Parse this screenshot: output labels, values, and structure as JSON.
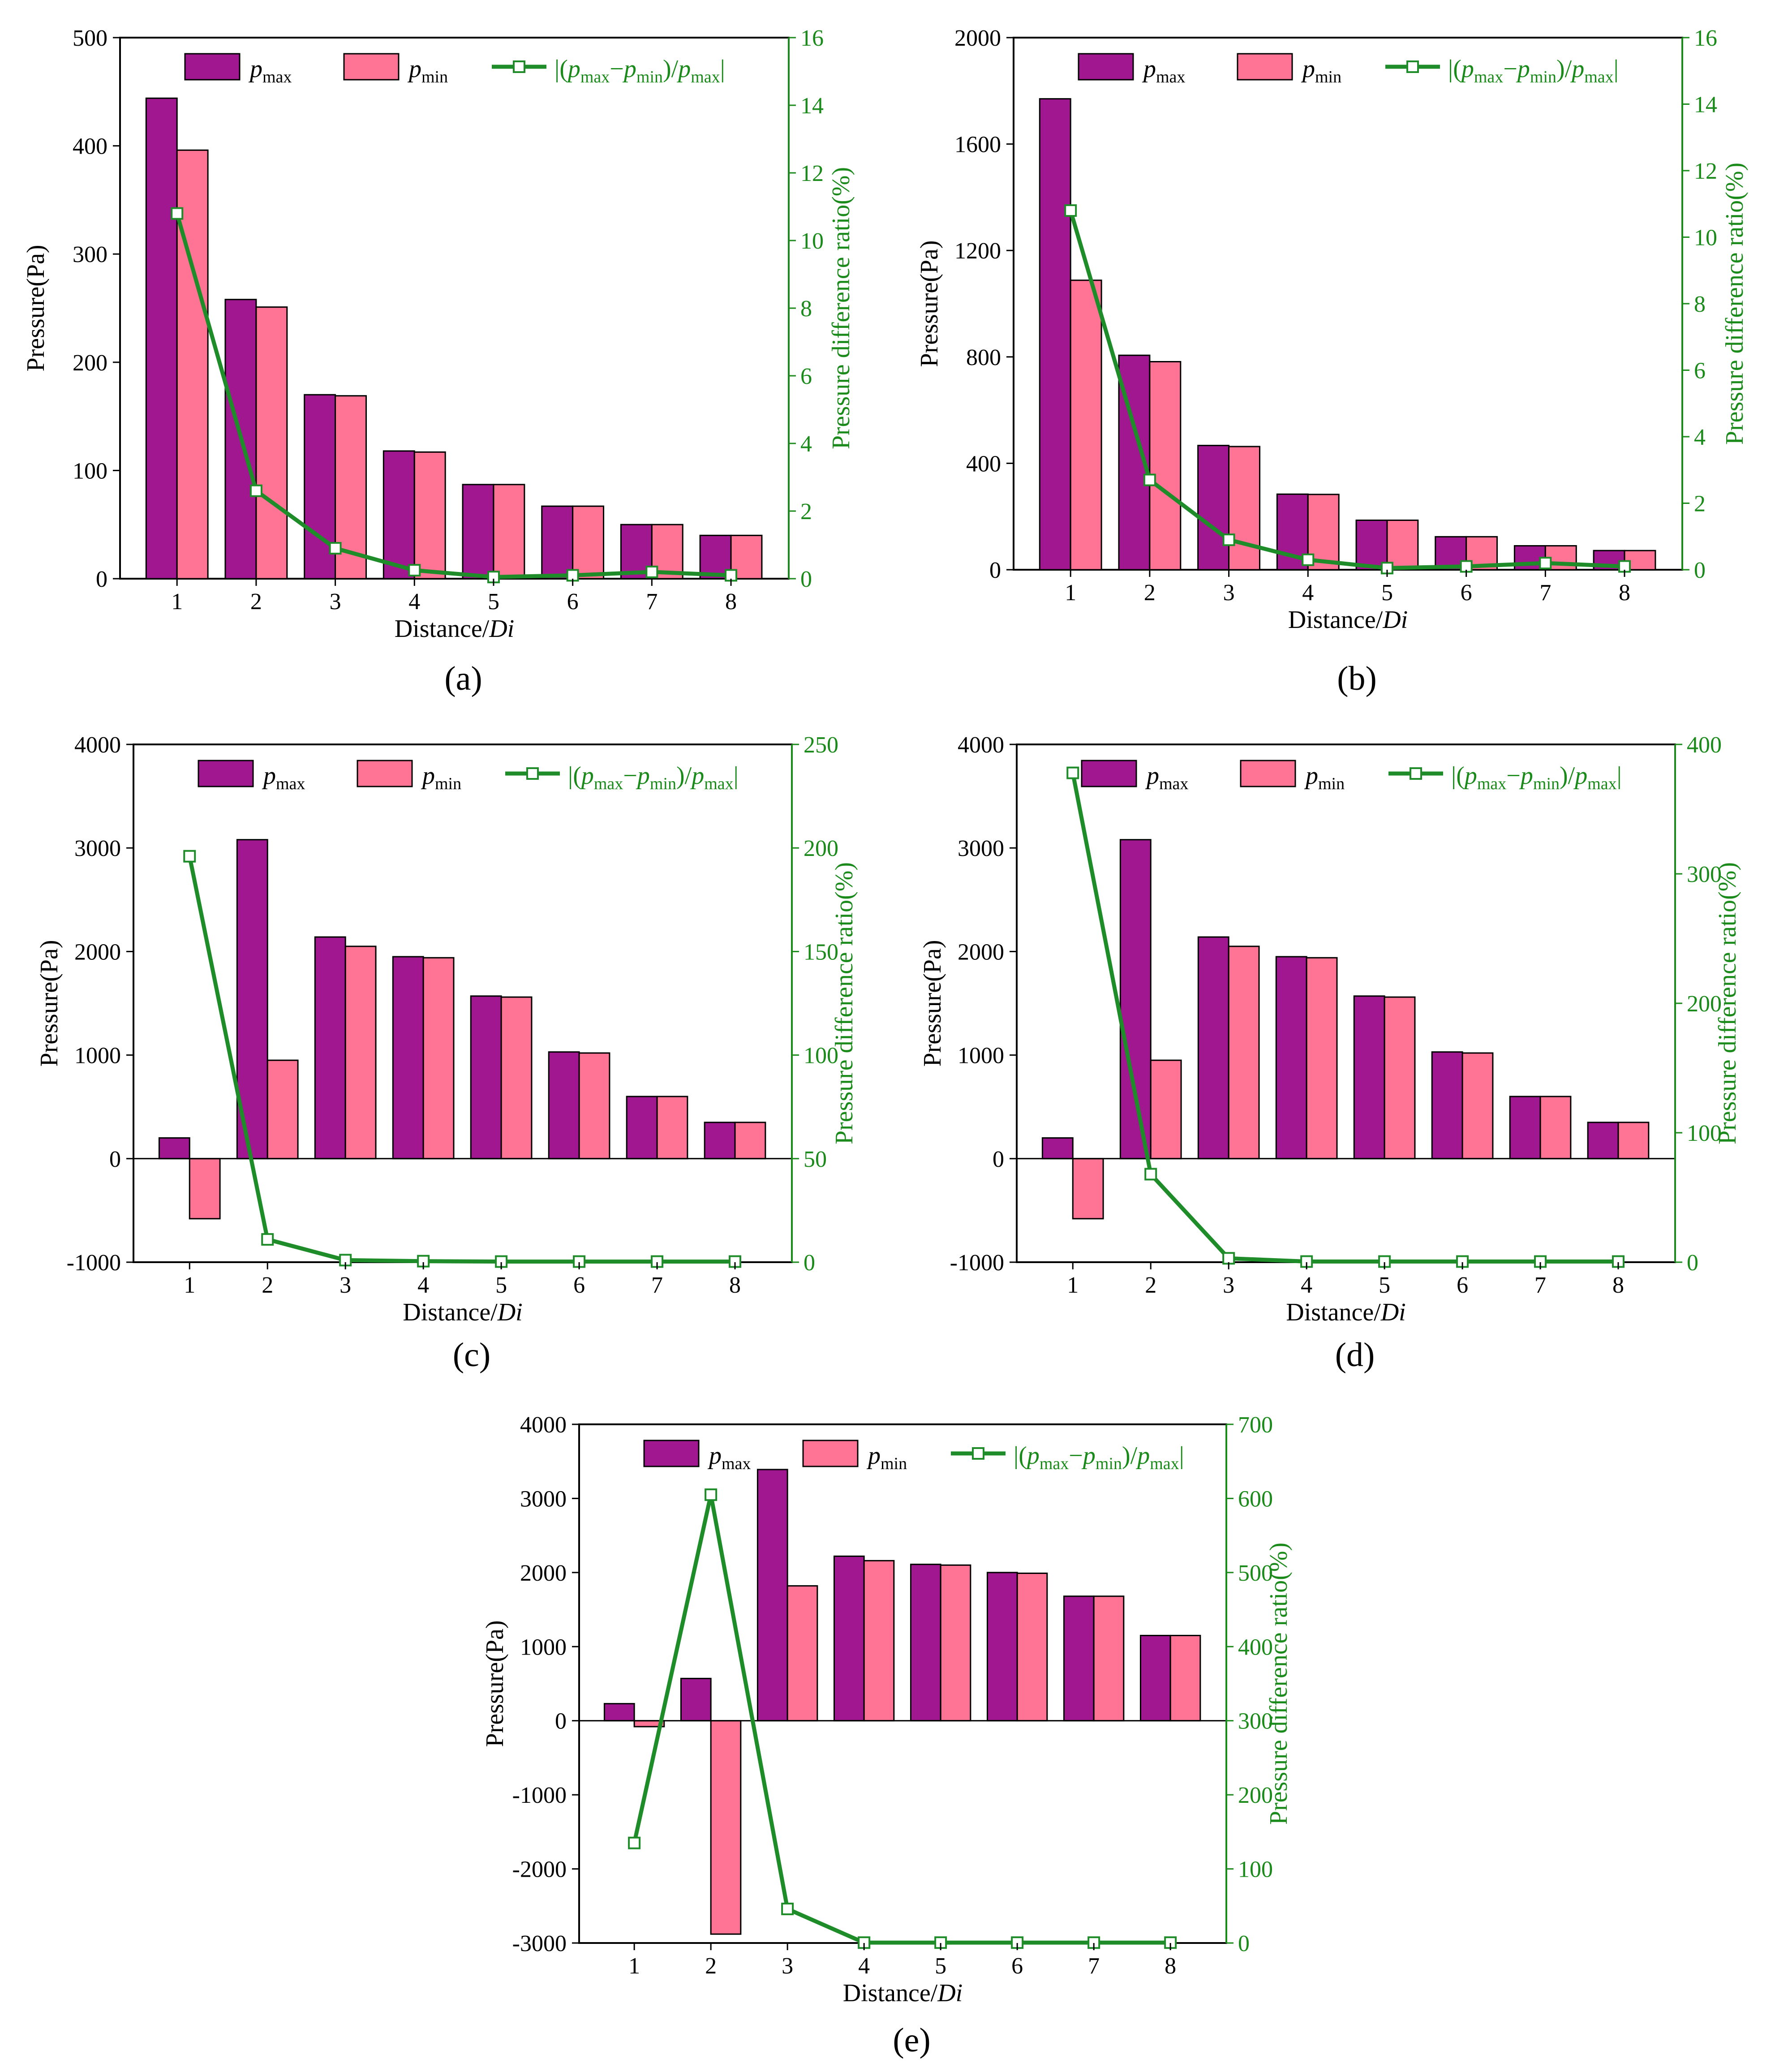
{
  "colors": {
    "pmax": "#a0178f",
    "pmin": "#ff7394",
    "ratio": "#1e8c28",
    "ratio_text": "#1a8a1a"
  },
  "legend": {
    "p": "p",
    "max_sub": "max",
    "min_sub": "min",
    "ratio_prefix": "|(",
    "ratio_minus": "−",
    "ratio_mid": ")/",
    "ratio_suffix": "|"
  },
  "chart_data": [
    {
      "id": "a",
      "type": "bar",
      "panel_label": "(a)",
      "xlabel": "Distance/Di",
      "xlabel_plain": "Distance/",
      "xlabel_italic": "Di",
      "ylabel": "Pressure(Pa)",
      "y2label": "Pressure difference ratio(%)",
      "categories": [
        "1",
        "2",
        "3",
        "4",
        "5",
        "6",
        "7",
        "8"
      ],
      "ylim": [
        0,
        500
      ],
      "yticks": [
        0,
        100,
        200,
        300,
        400,
        500
      ],
      "y2lim": [
        0,
        16
      ],
      "y2ticks": [
        0,
        2,
        4,
        6,
        8,
        10,
        12,
        14,
        16
      ],
      "series": [
        {
          "name": "p_max",
          "kind": "bar",
          "values": [
            444,
            258,
            170,
            118,
            87,
            67,
            50,
            40
          ]
        },
        {
          "name": "p_min",
          "kind": "bar",
          "values": [
            396,
            251,
            169,
            117,
            87,
            67,
            50,
            40
          ]
        },
        {
          "name": "|(p_max-p_min)/p_max|",
          "kind": "line",
          "axis": "right",
          "values": [
            10.8,
            2.6,
            0.9,
            0.25,
            0.05,
            0.1,
            0.2,
            0.1
          ]
        }
      ]
    },
    {
      "id": "b",
      "type": "bar",
      "panel_label": "(b)",
      "xlabel": "Distance/Di",
      "xlabel_plain": "Distance/",
      "xlabel_italic": "Di",
      "ylabel": "Pressure(Pa)",
      "y2label": "Pressure difference ratio(%)",
      "categories": [
        "1",
        "2",
        "3",
        "4",
        "5",
        "6",
        "7",
        "8"
      ],
      "ylim": [
        0,
        2000
      ],
      "yticks": [
        0,
        400,
        800,
        1200,
        1600,
        2000
      ],
      "y2lim": [
        0,
        16
      ],
      "y2ticks": [
        0,
        2,
        4,
        6,
        8,
        10,
        12,
        14,
        16
      ],
      "series": [
        {
          "name": "p_max",
          "kind": "bar",
          "values": [
            1770,
            806,
            467,
            284,
            186,
            124,
            90,
            72
          ]
        },
        {
          "name": "p_min",
          "kind": "bar",
          "values": [
            1088,
            782,
            463,
            283,
            186,
            124,
            90,
            72
          ]
        },
        {
          "name": "|(p_max-p_min)/p_max|",
          "kind": "line",
          "axis": "right",
          "values": [
            10.8,
            2.7,
            0.9,
            0.3,
            0.05,
            0.1,
            0.2,
            0.1
          ]
        }
      ]
    },
    {
      "id": "c",
      "type": "bar",
      "panel_label": "(c)",
      "xlabel": "Distance/Di",
      "xlabel_plain": "Distance/",
      "xlabel_italic": "Di",
      "ylabel": "Pressure(Pa)",
      "y2label": "Pressure difference ratio(%)",
      "categories": [
        "1",
        "2",
        "3",
        "4",
        "5",
        "6",
        "7",
        "8"
      ],
      "ylim": [
        -1000,
        4000
      ],
      "yticks": [
        -1000,
        0,
        1000,
        2000,
        3000,
        4000
      ],
      "y2lim": [
        0,
        250
      ],
      "y2ticks": [
        0,
        50,
        100,
        150,
        200,
        250
      ],
      "series": [
        {
          "name": "p_max",
          "kind": "bar",
          "values": [
            200,
            3080,
            2140,
            1950,
            1570,
            1030,
            600,
            350
          ]
        },
        {
          "name": "p_min",
          "kind": "bar",
          "values": [
            -580,
            950,
            2050,
            1940,
            1560,
            1020,
            600,
            350
          ]
        },
        {
          "name": "|(p_max-p_min)/p_max|",
          "kind": "line",
          "axis": "right",
          "values": [
            196,
            11,
            1,
            0.5,
            0.3,
            0.3,
            0.3,
            0.3
          ]
        }
      ]
    },
    {
      "id": "d",
      "type": "bar",
      "panel_label": "(d)",
      "xlabel": "Distance/Di",
      "xlabel_plain": "Distance/",
      "xlabel_italic": "Di",
      "ylabel": "Pressure(Pa)",
      "y2label": "Pressure difference ratio(%)",
      "categories": [
        "1",
        "2",
        "3",
        "4",
        "5",
        "6",
        "7",
        "8"
      ],
      "ylim": [
        -1000,
        4000
      ],
      "yticks": [
        -1000,
        0,
        1000,
        2000,
        3000,
        4000
      ],
      "y2lim": [
        0,
        400
      ],
      "y2ticks": [
        0,
        100,
        200,
        300,
        400
      ],
      "series": [
        {
          "name": "p_max",
          "kind": "bar",
          "values": [
            200,
            3080,
            2140,
            1950,
            1570,
            1030,
            600,
            350
          ]
        },
        {
          "name": "p_min",
          "kind": "bar",
          "values": [
            -580,
            950,
            2050,
            1940,
            1560,
            1020,
            600,
            350
          ]
        },
        {
          "name": "|(p_max-p_min)/p_max|",
          "kind": "line",
          "axis": "right",
          "values": [
            378,
            68,
            3,
            0.5,
            0.5,
            0.5,
            0.5,
            0.5
          ]
        }
      ]
    },
    {
      "id": "e",
      "type": "bar",
      "panel_label": "(e)",
      "xlabel": "Distance/Di",
      "xlabel_plain": "Distance/",
      "xlabel_italic": "Di",
      "ylabel": "Pressure(Pa)",
      "y2label": "Pressure difference ratio(%)",
      "categories": [
        "1",
        "2",
        "3",
        "4",
        "5",
        "6",
        "7",
        "8"
      ],
      "ylim": [
        -3000,
        4000
      ],
      "yticks": [
        -3000,
        -2000,
        -1000,
        0,
        1000,
        2000,
        3000,
        4000
      ],
      "y2lim": [
        0,
        700
      ],
      "y2ticks": [
        0,
        100,
        200,
        300,
        400,
        500,
        600,
        700
      ],
      "series": [
        {
          "name": "p_max",
          "kind": "bar",
          "values": [
            230,
            570,
            3390,
            2220,
            2110,
            2000,
            1680,
            1150
          ]
        },
        {
          "name": "p_min",
          "kind": "bar",
          "values": [
            -80,
            -2880,
            1820,
            2160,
            2100,
            1990,
            1680,
            1150
          ]
        },
        {
          "name": "|(p_max-p_min)/p_max|",
          "kind": "line",
          "axis": "right",
          "values": [
            135,
            605,
            46,
            0.5,
            0.5,
            0.5,
            0.5,
            0.5
          ]
        }
      ]
    }
  ]
}
